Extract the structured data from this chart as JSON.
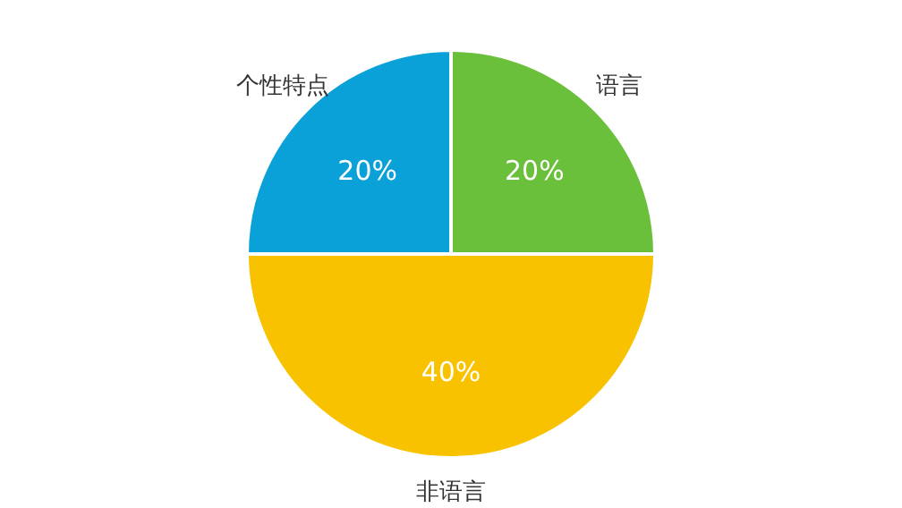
{
  "chart_data": {
    "type": "pie",
    "categories": [
      "语言",
      "非语言",
      "个性特点"
    ],
    "values": [
      20,
      40,
      20
    ],
    "colors": [
      "#6abf3b",
      "#f8c200",
      "#0aa0d8"
    ],
    "value_labels": [
      "20%",
      "40%",
      "20%"
    ]
  }
}
